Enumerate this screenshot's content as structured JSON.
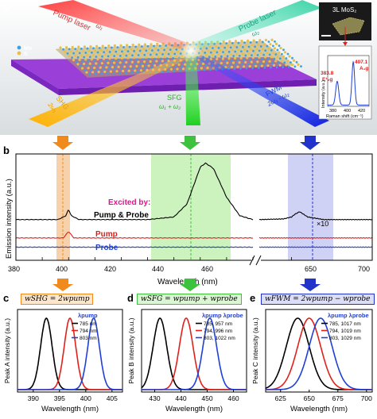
{
  "panels": {
    "a": {
      "letter": "a",
      "pump_label": "Pump laser",
      "pump_sub": "ω₁",
      "probe_label": "Probe laser",
      "probe_sub": "ω₂",
      "legend_mo": "Mo",
      "legend_s": "S",
      "shg_label": "SHG",
      "shg_sub": "2ω₁",
      "sfg_label": "SFG",
      "sfg_sub": "ω₁ + ω₂",
      "fwm_label": "FWM",
      "fwm_sub": "2ω₁ - ω₂",
      "inset_title": "3L MoS₂",
      "raman": {
        "peak_e": "383.8",
        "peak_e_label": "E¹₂g",
        "peak_a": "407.1",
        "peak_a_label": "A₁g",
        "ylabel": "Intensity (a.u.)",
        "xlabel": "Raman shift (cm⁻¹)",
        "xticks": [
          "380",
          "400",
          "420"
        ]
      }
    },
    "b": {
      "letter": "b",
      "ylabel": "Emission intensity (a.u.)",
      "xlabel": "Wavelength (nm)",
      "xticks": [
        "380",
        "400",
        "420",
        "440",
        "460",
        "650",
        "700"
      ],
      "excited_by": "Excited by:",
      "series_pp": "Pump & Probe",
      "series_pump": "Pump",
      "series_probe": "Probe",
      "magnify": "×10"
    },
    "c": {
      "letter": "c",
      "equation": "wSHG = 2wpump",
      "legend_title": "λpump",
      "legend": [
        "785 nm",
        "794 nm",
        "803 nm"
      ],
      "ylabel": "Peak A intensity (a.u.)",
      "xlabel": "Wavelength (nm)",
      "xticks": [
        "390",
        "395",
        "400",
        "405"
      ]
    },
    "d": {
      "letter": "d",
      "equation": "wSFG = wpump + wprobe",
      "legend_title": "λpump λprobe",
      "legend": [
        "785,   957 nm",
        "794,   996 nm",
        "803, 1022 nm"
      ],
      "ylabel": "Peak B intensity (a.u.)",
      "xlabel": "Wavelength (nm)",
      "xticks": [
        "430",
        "440",
        "450",
        "460"
      ]
    },
    "e": {
      "letter": "e",
      "equation": "wFWM = 2wpump − wprobe",
      "legend_title": "λpump λprobe",
      "legend": [
        "785, 1017 nm",
        "794, 1019 nm",
        "803, 1029 nm"
      ],
      "ylabel": "Peak C intensity (a.u.)",
      "xlabel": "Wavelength (nm)",
      "xticks": [
        "625",
        "650",
        "675",
        "700"
      ]
    }
  },
  "colors": {
    "black": "#000000",
    "red": "#e0201b",
    "blue": "#1f3fd8",
    "shg_band": "#f6c99a",
    "sfg_band": "#c3f0b3",
    "fwm_band": "#c7c9f3",
    "orange_arrow": "#f08a1c",
    "green_arrow": "#3cc23c",
    "blue_arrow": "#2233cc",
    "excited_magenta": "#e0168c"
  },
  "chart_data": [
    {
      "panel": "b",
      "type": "line",
      "xlabel": "Wavelength (nm)",
      "ylabel": "Emission intensity (a.u.)",
      "x_segments": [
        [
          380,
          470
        ],
        [
          630,
          700
        ]
      ],
      "series": [
        {
          "name": "Pump & Probe",
          "x": [
            380,
            396,
            399,
            400,
            401,
            404,
            430,
            440,
            445,
            450,
            452,
            455,
            460,
            465,
            470,
            630,
            645,
            650,
            652,
            655,
            660,
            670,
            700
          ],
          "y": [
            0.62,
            0.62,
            0.68,
            0.78,
            0.68,
            0.62,
            0.62,
            0.66,
            0.86,
            1.42,
            1.48,
            1.4,
            0.96,
            0.68,
            0.62,
            0.62,
            0.63,
            0.66,
            0.7,
            0.74,
            0.66,
            0.62,
            0.62
          ]
        },
        {
          "name": "Pump",
          "x": [
            380,
            398,
            400,
            402,
            470,
            630,
            700
          ],
          "y": [
            0.34,
            0.34,
            0.44,
            0.34,
            0.34,
            0.34,
            0.34
          ]
        },
        {
          "name": "Probe",
          "x": [
            380,
            470,
            630,
            700
          ],
          "y": [
            0.2,
            0.2,
            0.2,
            0.2
          ]
        }
      ]
    },
    {
      "panel": "c",
      "type": "line",
      "xlabel": "Wavelength (nm)",
      "ylabel": "Peak A intensity (a.u.)",
      "xlim": [
        387,
        407
      ],
      "series": [
        {
          "name": "785 nm",
          "center": 392.5,
          "width": 1.1
        },
        {
          "name": "794 nm",
          "center": 397.0,
          "width": 1.1
        },
        {
          "name": "803 nm",
          "center": 401.5,
          "width": 1.1
        }
      ]
    },
    {
      "panel": "d",
      "type": "line",
      "xlabel": "Wavelength (nm)",
      "ylabel": "Peak B intensity (a.u.)",
      "xlim": [
        425,
        465
      ],
      "series": [
        {
          "name": "785, 957 nm",
          "center": 432,
          "width": 2.6
        },
        {
          "name": "794, 996 nm",
          "center": 442,
          "width": 2.6
        },
        {
          "name": "803, 1022 nm",
          "center": 451,
          "width": 2.6
        }
      ]
    },
    {
      "panel": "e",
      "type": "line",
      "xlabel": "Wavelength (nm)",
      "ylabel": "Peak C intensity (a.u.)",
      "xlim": [
        612,
        705
      ],
      "series": [
        {
          "name": "785, 1017 nm",
          "center": 640,
          "width": 10
        },
        {
          "name": "794, 1019 nm",
          "center": 650,
          "width": 10
        },
        {
          "name": "803, 1029 nm",
          "center": 660,
          "width": 10
        }
      ]
    }
  ]
}
